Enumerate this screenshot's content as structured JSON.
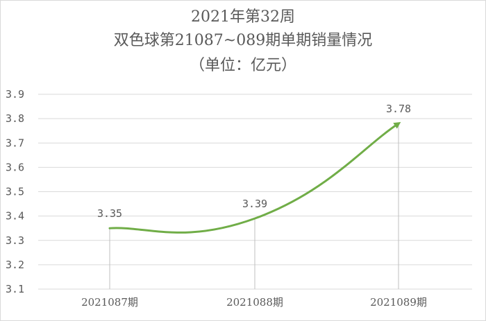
{
  "chart_data": {
    "type": "line",
    "title_lines": [
      "2021年第32周",
      "双色球第21087~089期单期销量情况",
      "（单位：亿元）"
    ],
    "categories": [
      "2021087期",
      "2021088期",
      "2021089期"
    ],
    "series": [
      {
        "values": [
          3.35,
          3.39,
          3.78
        ],
        "labels": [
          "3.35",
          "3.39",
          "3.78"
        ]
      }
    ],
    "ylim": [
      3.1,
      3.9
    ],
    "yticks": [
      "3.1",
      "3.2",
      "3.3",
      "3.4",
      "3.5",
      "3.6",
      "3.7",
      "3.8",
      "3.9"
    ],
    "grid": true,
    "smooth": true,
    "drop_lines": true,
    "end_arrow": true,
    "colors": {
      "line": "#70ad47",
      "grid": "#d9d9d9",
      "text": "#595959",
      "drop_line": "#bfbfbf"
    }
  }
}
